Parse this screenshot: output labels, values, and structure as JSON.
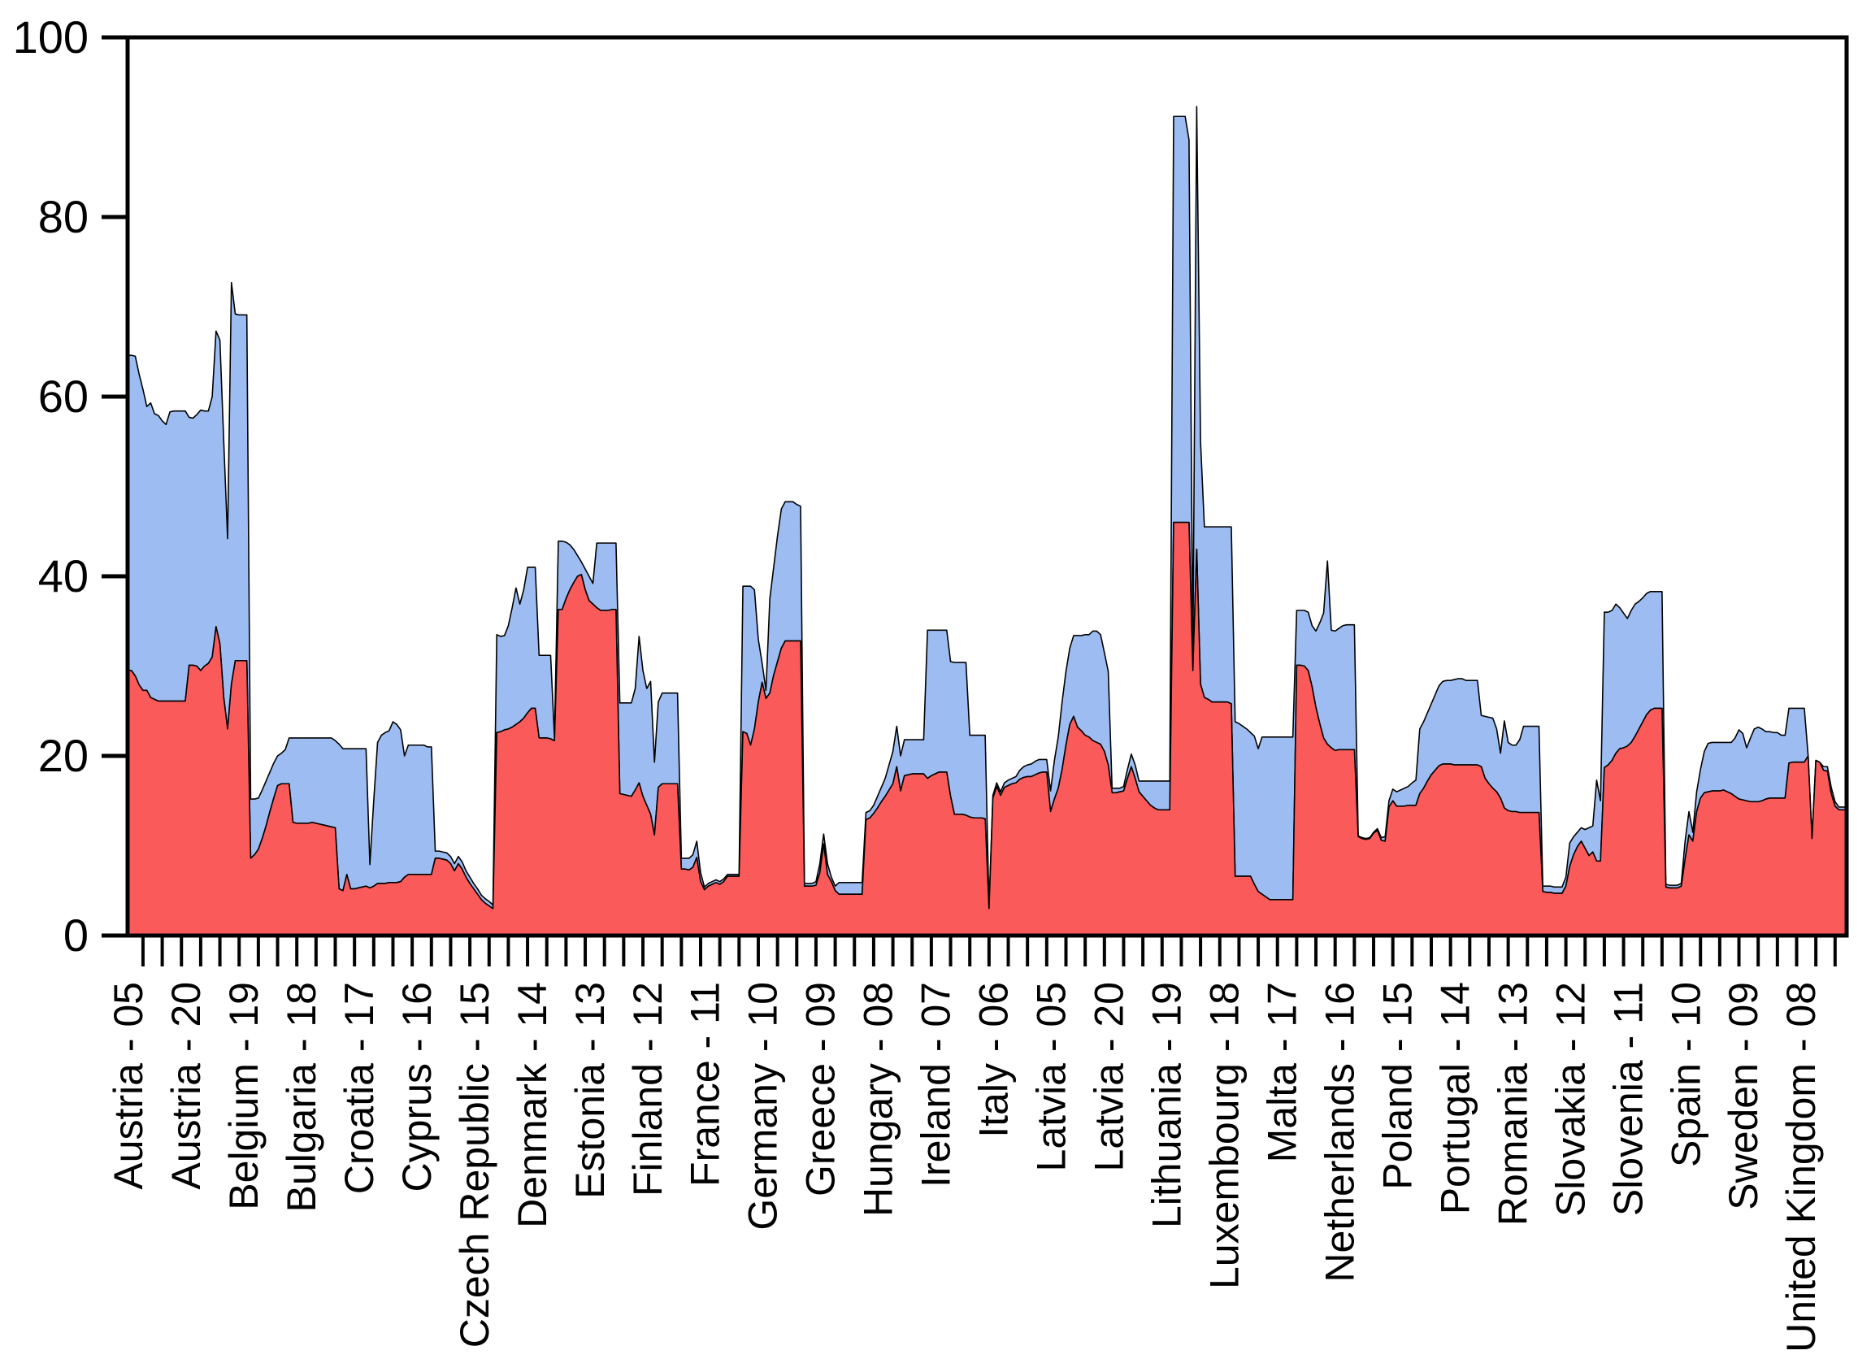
{
  "chart_data": {
    "type": "area",
    "stacked": true,
    "title": "",
    "xlabel": "",
    "ylabel": "",
    "ylim": [
      0,
      100
    ],
    "y_ticks": [
      "0",
      "20",
      "40",
      "60",
      "80",
      "100"
    ],
    "grid": false,
    "legend": "none",
    "axis_color": "#000000",
    "series_colors": {
      "bottom": "#fb5a5a",
      "top": "#9dbdf2"
    },
    "series_names": {
      "bottom": "red-series",
      "top": "blue-series"
    },
    "x_structure": {
      "observations": 448,
      "countries_count": 28,
      "years_per_country": 16,
      "year_range": [
        "05",
        "20"
      ],
      "label_every": 15,
      "minor_tick_every": 5
    },
    "x_tick_labels": [
      "Austria - 05",
      "Austria - 20",
      "Belgium - 19",
      "Bulgaria - 18",
      "Croatia - 17",
      "Cyprus - 16",
      "Czech Republic - 15",
      "Denmark - 14",
      "Estonia - 13",
      "Finland - 12",
      "France - 11",
      "Germany - 10",
      "Greece - 09",
      "Hungary - 08",
      "Ireland - 07",
      "Italy - 06",
      "Latvia - 05",
      "Latvia - 20",
      "Lithuania - 19",
      "Luxembourg - 18",
      "Malta - 17",
      "Netherlands - 16",
      "Poland - 15",
      "Portugal - 14",
      "Romania - 13",
      "Slovakia - 12",
      "Slovenia - 11",
      "Spain - 10",
      "Sweden - 09",
      "United Kingdom - 08"
    ],
    "x_tick_label_obs": [
      1,
      16,
      31,
      46,
      61,
      76,
      91,
      106,
      121,
      136,
      151,
      166,
      181,
      196,
      211,
      226,
      241,
      256,
      271,
      286,
      301,
      316,
      331,
      346,
      361,
      376,
      391,
      406,
      421,
      436
    ],
    "countries": [
      {
        "name": "Austria",
        "total": [
          64.6,
          64.6,
          64.5,
          62.5,
          60.8,
          58.9,
          59.3,
          58.1,
          57.9,
          57.3,
          56.9,
          58.3,
          58.4,
          58.4,
          58.4,
          58.4
        ],
        "red": [
          29.5,
          29.5,
          28.9,
          27.9,
          27.3,
          27.3,
          26.5,
          26.3,
          26.1,
          26.1,
          26.1,
          26.1,
          26.1,
          26.1,
          26.1,
          26.1
        ]
      },
      {
        "name": "Belgium",
        "total": [
          57.7,
          57.6,
          58.0,
          58.5,
          58.4,
          58.4,
          60.0,
          67.3,
          66.3,
          55.0,
          44.2,
          72.7,
          69.2,
          69.1,
          69.1,
          69.1
        ],
        "red": [
          30.1,
          30.1,
          30.0,
          29.5,
          30.0,
          30.3,
          31.0,
          34.4,
          32.5,
          26.5,
          23.0,
          28.0,
          30.6,
          30.6,
          30.6,
          30.6
        ]
      },
      {
        "name": "Bulgaria",
        "total": [
          15.2,
          15.2,
          15.3,
          16.2,
          17.2,
          18.2,
          19.2,
          20.0,
          20.3,
          20.7,
          22.0,
          22.0,
          22.0,
          22.0,
          22.0,
          22.0
        ],
        "red": [
          8.6,
          9.0,
          9.6,
          10.8,
          12.2,
          13.8,
          15.3,
          16.7,
          16.9,
          16.9,
          16.9,
          12.6,
          12.5,
          12.5,
          12.5,
          12.5
        ]
      },
      {
        "name": "Croatia",
        "total": [
          22.0,
          22.0,
          22.0,
          22.0,
          22.0,
          22.0,
          21.7,
          21.3,
          20.8,
          20.8,
          20.8,
          20.8,
          20.8,
          20.8,
          20.8,
          7.9
        ],
        "red": [
          12.6,
          12.5,
          12.4,
          12.3,
          12.2,
          12.1,
          12.0,
          5.2,
          5.0,
          6.8,
          5.2,
          5.2,
          5.3,
          5.4,
          5.5,
          5.3
        ]
      },
      {
        "name": "Cyprus",
        "total": [
          15.0,
          21.5,
          22.3,
          22.6,
          22.8,
          23.8,
          23.5,
          22.9,
          20.0,
          21.2,
          21.2,
          21.2,
          21.2,
          21.2,
          21.0,
          21.0
        ],
        "red": [
          5.5,
          5.8,
          5.8,
          5.8,
          5.9,
          5.9,
          5.9,
          6.0,
          6.5,
          6.8,
          6.8,
          6.8,
          6.8,
          6.8,
          6.8,
          6.8
        ]
      },
      {
        "name": "Czech Republic",
        "total": [
          9.4,
          9.4,
          9.3,
          9.2,
          8.8,
          8.0,
          8.8,
          8.2,
          7.2,
          6.5,
          5.8,
          5.2,
          4.5,
          4.1,
          3.8,
          3.4
        ],
        "red": [
          8.6,
          8.6,
          8.5,
          8.4,
          8.0,
          7.2,
          8.0,
          7.4,
          6.5,
          5.8,
          5.2,
          4.6,
          4.0,
          3.6,
          3.3,
          3.0
        ]
      },
      {
        "name": "Denmark",
        "total": [
          33.5,
          33.3,
          33.4,
          34.5,
          36.5,
          38.7,
          36.9,
          38.5,
          41.0,
          41.0,
          41.0,
          31.2,
          31.2,
          31.2,
          31.2,
          22.0
        ],
        "red": [
          22.6,
          22.7,
          22.9,
          23.0,
          23.2,
          23.5,
          23.8,
          24.2,
          24.8,
          25.3,
          25.3,
          22.0,
          22.0,
          22.0,
          21.9,
          21.7
        ]
      },
      {
        "name": "Estonia",
        "total": [
          43.9,
          43.9,
          43.8,
          43.5,
          43.0,
          42.3,
          41.6,
          40.8,
          40.0,
          39.2,
          43.7,
          43.7,
          43.7,
          43.7,
          43.7,
          43.7
        ],
        "red": [
          36.3,
          36.3,
          37.5,
          38.5,
          39.3,
          40.0,
          40.2,
          38.5,
          37.3,
          36.9,
          36.5,
          36.2,
          36.2,
          36.2,
          36.3,
          36.3
        ]
      },
      {
        "name": "Finland",
        "total": [
          25.9,
          25.9,
          25.9,
          25.9,
          27.5,
          33.3,
          29.5,
          27.5,
          28.3,
          19.3,
          26.0,
          27.0,
          27.0,
          27.0,
          27.0,
          27.0
        ],
        "red": [
          15.8,
          15.7,
          15.6,
          15.5,
          16.2,
          17.0,
          15.5,
          14.5,
          13.5,
          11.2,
          16.5,
          16.9,
          16.9,
          16.9,
          16.9,
          16.9
        ]
      },
      {
        "name": "France",
        "total": [
          8.6,
          8.6,
          8.6,
          9.0,
          10.5,
          7.0,
          5.4,
          5.8,
          6.0,
          6.2,
          6.0,
          6.3,
          6.8,
          6.8,
          6.8,
          6.8
        ],
        "red": [
          7.4,
          7.4,
          7.3,
          7.6,
          8.7,
          6.0,
          5.1,
          5.5,
          5.7,
          5.9,
          5.7,
          6.0,
          6.6,
          6.6,
          6.6,
          6.6
        ]
      },
      {
        "name": "Germany",
        "total": [
          38.9,
          38.9,
          38.9,
          38.5,
          33.0,
          30.3,
          27.3,
          37.5,
          41.0,
          44.5,
          47.5,
          48.3,
          48.3,
          48.3,
          48.0,
          47.8
        ],
        "red": [
          22.7,
          22.5,
          21.2,
          23.0,
          26.0,
          28.2,
          26.4,
          27.0,
          29.0,
          30.5,
          32.0,
          32.8,
          32.8,
          32.8,
          32.8,
          32.8
        ]
      },
      {
        "name": "Greece",
        "total": [
          5.8,
          5.8,
          5.8,
          6.0,
          8.0,
          11.3,
          8.0,
          6.5,
          5.5,
          5.9,
          5.9,
          5.9,
          5.9,
          5.9,
          5.9,
          5.9
        ],
        "red": [
          5.5,
          5.5,
          5.5,
          5.6,
          7.0,
          10.2,
          6.8,
          6.0,
          5.0,
          4.6,
          4.6,
          4.6,
          4.6,
          4.6,
          4.6,
          4.6
        ]
      },
      {
        "name": "Hungary",
        "total": [
          13.7,
          13.9,
          14.5,
          15.5,
          16.5,
          17.5,
          19.0,
          20.5,
          23.3,
          20.0,
          21.8,
          21.8,
          21.8,
          21.8,
          21.8,
          21.8
        ],
        "red": [
          12.9,
          13.1,
          13.6,
          14.2,
          14.9,
          15.5,
          16.2,
          16.9,
          18.8,
          16.1,
          17.8,
          17.9,
          18.0,
          18.0,
          18.0,
          18.0
        ]
      },
      {
        "name": "Ireland",
        "total": [
          34.0,
          34.0,
          34.0,
          34.0,
          34.0,
          34.0,
          30.5,
          30.4,
          30.4,
          30.4,
          30.4,
          22.3,
          22.3,
          22.3,
          22.3,
          22.3
        ],
        "red": [
          17.5,
          17.8,
          18.0,
          18.2,
          18.2,
          18.2,
          15.5,
          13.5,
          13.5,
          13.5,
          13.4,
          13.2,
          13.1,
          13.1,
          13.1,
          13.0
        ]
      },
      {
        "name": "Italy",
        "total": [
          3.2,
          15.6,
          17.0,
          16.0,
          17.0,
          17.3,
          17.5,
          17.7,
          18.4,
          18.8,
          19.0,
          19.1,
          19.4,
          19.6,
          19.6,
          19.6
        ],
        "red": [
          3.0,
          15.3,
          16.6,
          15.6,
          16.5,
          16.7,
          16.9,
          17.0,
          17.4,
          17.6,
          17.7,
          17.7,
          17.9,
          18.1,
          18.2,
          18.2
        ]
      },
      {
        "name": "Latvia",
        "total": [
          16.1,
          19.5,
          22.1,
          26.0,
          29.4,
          32.0,
          33.4,
          33.4,
          33.4,
          33.5,
          33.5,
          33.9,
          33.9,
          33.5,
          31.5,
          29.4
        ],
        "red": [
          13.8,
          15.2,
          16.4,
          18.5,
          21.2,
          23.5,
          24.4,
          23.2,
          22.8,
          22.3,
          22.1,
          21.7,
          21.5,
          21.3,
          20.5,
          19.0
        ]
      },
      {
        "name": "Lithuania",
        "total": [
          16.4,
          16.4,
          16.4,
          16.6,
          18.5,
          20.2,
          19.0,
          17.2,
          17.2,
          17.2,
          17.2,
          17.2,
          17.2,
          17.2,
          17.2,
          17.2
        ],
        "red": [
          15.9,
          15.9,
          16.0,
          16.1,
          17.5,
          18.8,
          17.5,
          16.0,
          15.5,
          15.0,
          14.5,
          14.2,
          14.0,
          14.0,
          14.0,
          14.0
        ]
      },
      {
        "name": "Luxembourg",
        "total": [
          91.2,
          91.2,
          91.2,
          91.2,
          88.6,
          31.0,
          92.3,
          55.0,
          45.5,
          45.5,
          45.5,
          45.5,
          45.5,
          45.5,
          45.5,
          45.5
        ],
        "red": [
          46.0,
          46.0,
          46.0,
          46.0,
          46.0,
          29.5,
          43.0,
          28.0,
          26.5,
          26.3,
          26.0,
          26.0,
          26.0,
          26.0,
          26.0,
          25.8
        ]
      },
      {
        "name": "Malta",
        "total": [
          23.8,
          23.6,
          23.3,
          23.0,
          22.6,
          22.2,
          20.8,
          22.1,
          22.1,
          22.1,
          22.1,
          22.1,
          22.1,
          22.1,
          22.1,
          22.1
        ],
        "red": [
          6.6,
          6.6,
          6.6,
          6.6,
          6.6,
          5.7,
          4.9,
          4.6,
          4.3,
          4.0,
          4.0,
          4.0,
          4.0,
          4.0,
          4.0,
          4.0
        ]
      },
      {
        "name": "Netherlands",
        "total": [
          36.2,
          36.2,
          36.2,
          36.0,
          34.5,
          33.9,
          34.8,
          35.9,
          41.7,
          34.0,
          33.9,
          34.2,
          34.5,
          34.6,
          34.6,
          34.6
        ],
        "red": [
          30.1,
          30.1,
          30.0,
          29.5,
          27.7,
          25.4,
          23.6,
          22.0,
          21.3,
          20.9,
          20.6,
          20.7,
          20.7,
          20.7,
          20.7,
          20.7
        ]
      },
      {
        "name": "Poland",
        "total": [
          11.1,
          10.9,
          10.8,
          10.9,
          11.5,
          11.9,
          10.9,
          11.0,
          15.0,
          16.3,
          16.0,
          16.2,
          16.4,
          16.6,
          17.0,
          17.3
        ],
        "red": [
          11.0,
          10.8,
          10.7,
          10.8,
          11.4,
          11.7,
          10.6,
          10.5,
          14.3,
          15.0,
          14.4,
          14.4,
          14.4,
          14.5,
          14.5,
          14.5
        ]
      },
      {
        "name": "Portugal",
        "total": [
          23.0,
          23.8,
          24.8,
          25.8,
          26.8,
          27.8,
          28.3,
          28.4,
          28.4,
          28.5,
          28.6,
          28.6,
          28.4,
          28.4,
          28.4,
          28.4
        ],
        "red": [
          15.8,
          16.4,
          17.2,
          17.9,
          18.4,
          18.9,
          19.1,
          19.1,
          19.1,
          19.0,
          19.0,
          19.0,
          19.0,
          19.0,
          19.0,
          19.0
        ]
      },
      {
        "name": "Romania",
        "total": [
          24.5,
          24.4,
          24.3,
          24.2,
          23.0,
          20.3,
          23.9,
          21.5,
          21.2,
          21.2,
          21.8,
          23.3,
          23.3,
          23.3,
          23.3,
          23.3
        ],
        "red": [
          18.8,
          17.5,
          16.9,
          16.4,
          16.0,
          15.3,
          14.2,
          13.9,
          13.8,
          13.8,
          13.7,
          13.7,
          13.7,
          13.7,
          13.7,
          13.7
        ]
      },
      {
        "name": "Slovakia",
        "total": [
          5.5,
          5.5,
          5.5,
          5.4,
          5.4,
          5.4,
          6.5,
          10.3,
          11.0,
          11.5,
          12.0,
          11.8,
          12.0,
          12.2,
          17.3,
          15.0
        ],
        "red": [
          4.9,
          4.8,
          4.8,
          4.7,
          4.7,
          4.7,
          5.5,
          7.7,
          9.0,
          9.9,
          10.5,
          9.7,
          8.9,
          9.3,
          8.3,
          8.3
        ]
      },
      {
        "name": "Slovenia",
        "total": [
          36.0,
          36.0,
          36.2,
          36.9,
          36.5,
          35.9,
          35.3,
          36.2,
          36.9,
          37.2,
          37.6,
          38.1,
          38.3,
          38.3,
          38.3,
          38.3
        ],
        "red": [
          18.7,
          19.0,
          19.5,
          20.3,
          20.8,
          20.9,
          21.1,
          21.5,
          22.2,
          23.0,
          23.8,
          24.6,
          25.1,
          25.3,
          25.3,
          25.3
        ]
      },
      {
        "name": "Spain",
        "total": [
          5.7,
          5.6,
          5.6,
          5.6,
          5.8,
          10.5,
          13.8,
          11.5,
          16.0,
          18.5,
          20.5,
          21.4,
          21.5,
          21.5,
          21.5,
          21.5
        ],
        "red": [
          5.4,
          5.3,
          5.3,
          5.3,
          5.5,
          8.5,
          11.2,
          10.5,
          13.8,
          15.3,
          15.9,
          16.0,
          16.1,
          16.1,
          16.1,
          16.2
        ]
      },
      {
        "name": "Sweden",
        "total": [
          21.5,
          21.5,
          22.0,
          22.9,
          22.5,
          20.9,
          22.0,
          23.0,
          23.2,
          23.0,
          22.7,
          22.7,
          22.6,
          22.6,
          22.3,
          22.3
        ],
        "red": [
          16.0,
          15.8,
          15.5,
          15.2,
          15.1,
          15.0,
          14.9,
          14.9,
          14.9,
          15.0,
          15.2,
          15.3,
          15.3,
          15.3,
          15.3,
          15.3
        ]
      },
      {
        "name": "United Kingdom",
        "total": [
          25.3,
          25.3,
          25.3,
          25.3,
          25.3,
          20.0,
          10.8,
          19.5,
          19.3,
          18.8,
          18.8,
          16.5,
          14.9,
          14.3,
          14.3,
          14.3
        ],
        "red": [
          19.2,
          19.3,
          19.3,
          19.3,
          19.3,
          20.0,
          10.8,
          19.5,
          19.3,
          18.4,
          18.3,
          15.8,
          14.4,
          14.0,
          14.0,
          14.0
        ]
      }
    ]
  },
  "layout_note": "y-axis 0-100 with ticks every 20; x minor ticks every 5 observations; rotated country-year labels every 15 observations"
}
